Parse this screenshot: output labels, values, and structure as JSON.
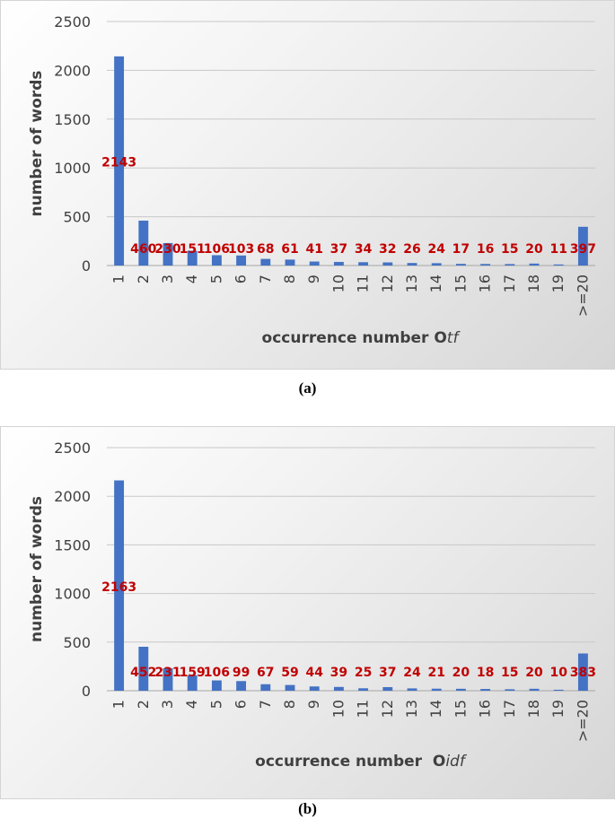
{
  "chart_data": [
    {
      "type": "bar",
      "panel_caption": "(a)",
      "xlabel": "occurrence number O",
      "xlabel_sub": "tf",
      "ylabel": "number of words",
      "categories": [
        "1",
        "2",
        "3",
        "4",
        "5",
        "6",
        "7",
        "8",
        "9",
        "10",
        "11",
        "12",
        "13",
        "14",
        "15",
        "16",
        "17",
        "18",
        "19",
        ">=20"
      ],
      "values": [
        2143,
        460,
        230,
        151,
        106,
        103,
        68,
        61,
        41,
        37,
        34,
        32,
        26,
        24,
        17,
        16,
        15,
        20,
        11,
        397
      ],
      "ylim": [
        0,
        2500
      ],
      "yticks": [
        0,
        500,
        1000,
        1500,
        2000,
        2500
      ],
      "grid": true,
      "bar_color": "#4472c4",
      "label_color": "#c00000"
    },
    {
      "type": "bar",
      "panel_caption": "(b)",
      "xlabel": "occurrence number  O",
      "xlabel_sub": "idf",
      "ylabel": "number of words",
      "categories": [
        "1",
        "2",
        "3",
        "4",
        "5",
        "6",
        "7",
        "8",
        "9",
        "10",
        "11",
        "12",
        "13",
        "14",
        "15",
        "16",
        "17",
        "18",
        "19",
        ">=20"
      ],
      "values": [
        2163,
        452,
        231,
        159,
        106,
        99,
        67,
        59,
        44,
        39,
        25,
        37,
        24,
        21,
        20,
        18,
        15,
        20,
        10,
        383
      ],
      "ylim": [
        0,
        2500
      ],
      "yticks": [
        0,
        500,
        1000,
        1500,
        2000,
        2500
      ],
      "grid": true,
      "bar_color": "#4472c4",
      "label_color": "#c00000"
    }
  ]
}
